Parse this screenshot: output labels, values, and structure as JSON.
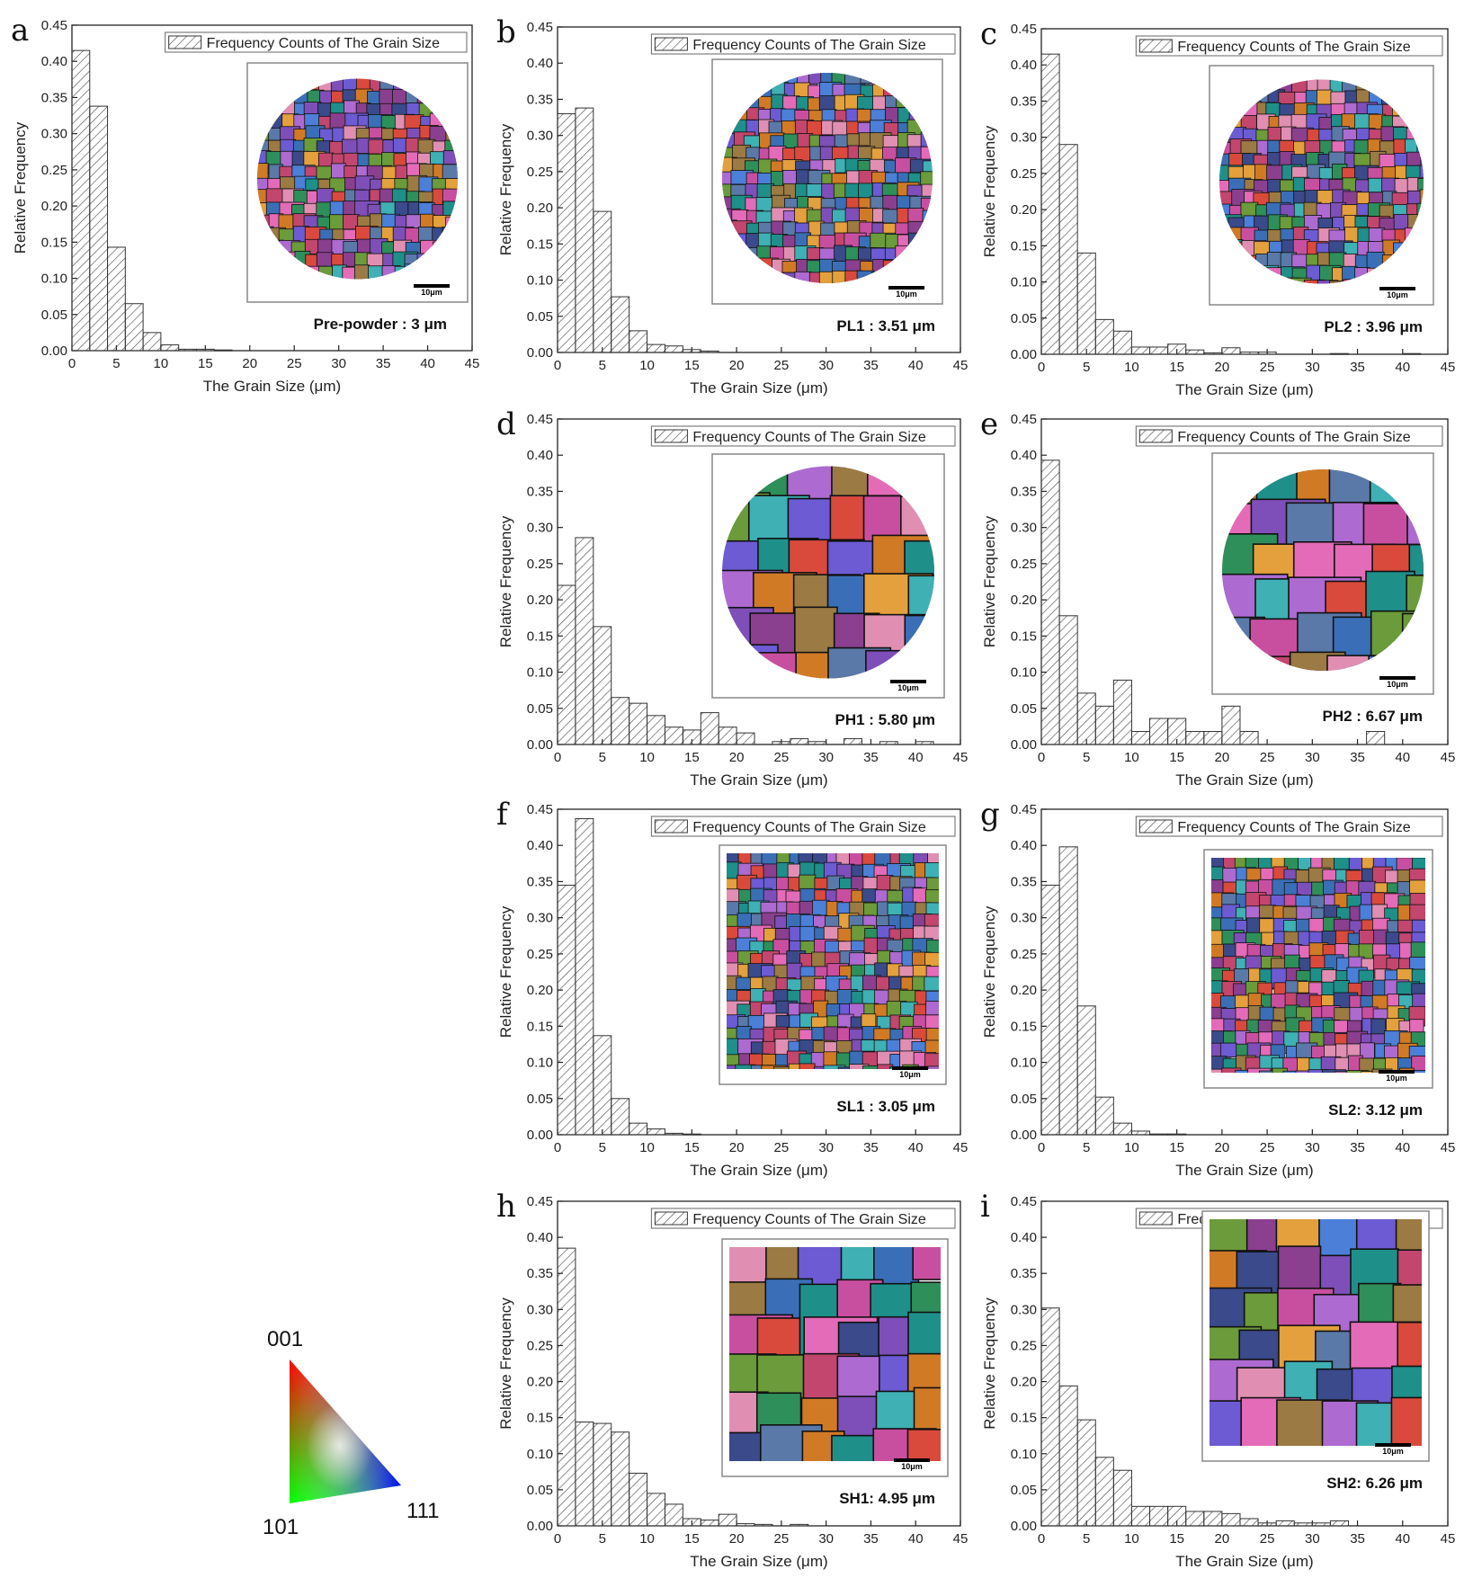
{
  "chart_data": [
    {
      "id": "a",
      "type": "bar",
      "letter": "a",
      "legend": "Frequency Counts of The Grain Size",
      "annotation": "Pre-powder : 3 μm",
      "xlabel": "The Grain Size (μm)",
      "ylabel": "Relative Frequency",
      "xlim": [
        0,
        45
      ],
      "ylim": [
        0,
        0.45
      ],
      "xticks": [
        "0",
        "5",
        "10",
        "15",
        "20",
        "25",
        "30",
        "35",
        "40",
        "45"
      ],
      "yticks": [
        "0.00",
        "0.05",
        "0.10",
        "0.15",
        "0.20",
        "0.25",
        "0.30",
        "0.35",
        "0.40",
        "0.45"
      ],
      "inset": "circle",
      "x": [
        1,
        3,
        5,
        7,
        9,
        11,
        13,
        15,
        17
      ],
      "values": [
        0.415,
        0.338,
        0.143,
        0.065,
        0.025,
        0.008,
        0.002,
        0.002,
        0.001
      ]
    },
    {
      "id": "b",
      "type": "bar",
      "letter": "b",
      "legend": "Frequency Counts of The Grain Size",
      "annotation": "PL1 : 3.51 μm",
      "xlabel": "The Grain Size (μm)",
      "ylabel": "Relative Frequency",
      "xlim": [
        0,
        45
      ],
      "ylim": [
        0,
        0.45
      ],
      "xticks": [
        "0",
        "5",
        "10",
        "15",
        "20",
        "25",
        "30",
        "35",
        "40",
        "45"
      ],
      "yticks": [
        "0.00",
        "0.05",
        "0.10",
        "0.15",
        "0.20",
        "0.25",
        "0.30",
        "0.35",
        "0.40",
        "0.45"
      ],
      "inset": "circle",
      "x": [
        1,
        3,
        5,
        7,
        9,
        11,
        13,
        15,
        17
      ],
      "values": [
        0.33,
        0.338,
        0.195,
        0.077,
        0.03,
        0.011,
        0.009,
        0.004,
        0.002
      ]
    },
    {
      "id": "c",
      "type": "bar",
      "letter": "c",
      "legend": "Frequency Counts of The Grain Size",
      "annotation": "PL2 : 3.96 μm",
      "xlabel": "The Grain Size (μm)",
      "ylabel": "Relative Frequency",
      "xlim": [
        0,
        45
      ],
      "ylim": [
        0,
        0.45
      ],
      "xticks": [
        "0",
        "5",
        "10",
        "15",
        "20",
        "25",
        "30",
        "35",
        "40",
        "45"
      ],
      "yticks": [
        "0.00",
        "0.05",
        "0.10",
        "0.15",
        "0.20",
        "0.25",
        "0.30",
        "0.35",
        "0.40",
        "0.45"
      ],
      "inset": "circle",
      "x": [
        1,
        3,
        5,
        7,
        9,
        11,
        13,
        15,
        17,
        19,
        21,
        23,
        25,
        33,
        41
      ],
      "values": [
        0.415,
        0.29,
        0.14,
        0.048,
        0.032,
        0.01,
        0.01,
        0.014,
        0.006,
        0.002,
        0.009,
        0.003,
        0.003,
        0.001,
        0.001
      ]
    },
    {
      "id": "d",
      "type": "bar",
      "letter": "d",
      "legend": "Frequency Counts of The Grain Size",
      "annotation": "PH1 : 5.80 μm",
      "xlabel": "The Grain Size (μm)",
      "ylabel": "Relative Frequency",
      "xlim": [
        0,
        45
      ],
      "ylim": [
        0,
        0.45
      ],
      "xticks": [
        "0",
        "5",
        "10",
        "15",
        "20",
        "25",
        "30",
        "35",
        "40",
        "45"
      ],
      "yticks": [
        "0.00",
        "0.05",
        "0.10",
        "0.15",
        "0.20",
        "0.25",
        "0.30",
        "0.35",
        "0.40",
        "0.45"
      ],
      "inset": "circle-coarse",
      "x": [
        1,
        3,
        5,
        7,
        9,
        11,
        13,
        15,
        17,
        19,
        21,
        25,
        27,
        29,
        33,
        37,
        41
      ],
      "values": [
        0.22,
        0.286,
        0.163,
        0.065,
        0.057,
        0.04,
        0.024,
        0.02,
        0.044,
        0.024,
        0.016,
        0.004,
        0.008,
        0.004,
        0.008,
        0.004,
        0.004
      ]
    },
    {
      "id": "e",
      "type": "bar",
      "letter": "e",
      "legend": "Frequency Counts of The Grain Size",
      "annotation": "PH2 : 6.67 μm",
      "xlabel": "The Grain Size (μm)",
      "ylabel": "Relative Frequency",
      "xlim": [
        0,
        45
      ],
      "ylim": [
        0,
        0.45
      ],
      "xticks": [
        "0",
        "5",
        "10",
        "15",
        "20",
        "25",
        "30",
        "35",
        "40",
        "45"
      ],
      "yticks": [
        "0.00",
        "0.05",
        "0.10",
        "0.15",
        "0.20",
        "0.25",
        "0.30",
        "0.35",
        "0.40",
        "0.45"
      ],
      "inset": "circle-coarse",
      "x": [
        1,
        3,
        5,
        7,
        9,
        11,
        13,
        15,
        17,
        19,
        21,
        23,
        37
      ],
      "values": [
        0.393,
        0.178,
        0.071,
        0.053,
        0.089,
        0.018,
        0.036,
        0.036,
        0.018,
        0.018,
        0.053,
        0.018,
        0.018
      ]
    },
    {
      "id": "f",
      "type": "bar",
      "letter": "f",
      "legend": "Frequency Counts of The Grain Size",
      "annotation": "SL1 : 3.05 μm",
      "xlabel": "The Grain Size (μm)",
      "ylabel": "Relative Frequency",
      "xlim": [
        0,
        45
      ],
      "ylim": [
        0,
        0.45
      ],
      "xticks": [
        "0",
        "5",
        "10",
        "15",
        "20",
        "25",
        "30",
        "35",
        "40",
        "45"
      ],
      "yticks": [
        "0.00",
        "0.05",
        "0.10",
        "0.15",
        "0.20",
        "0.25",
        "0.30",
        "0.35",
        "0.40",
        "0.45"
      ],
      "inset": "square",
      "x": [
        1,
        3,
        5,
        7,
        9,
        11,
        13,
        15
      ],
      "values": [
        0.345,
        0.437,
        0.137,
        0.05,
        0.016,
        0.008,
        0.002,
        0.001
      ]
    },
    {
      "id": "g",
      "type": "bar",
      "letter": "g",
      "legend": "Frequency Counts of The Grain Size",
      "annotation": "SL2: 3.12 μm",
      "xlabel": "The Grain Size (μm)",
      "ylabel": "Relative Frequency",
      "xlim": [
        0,
        45
      ],
      "ylim": [
        0,
        0.45
      ],
      "xticks": [
        "0",
        "5",
        "10",
        "15",
        "20",
        "25",
        "30",
        "35",
        "40",
        "45"
      ],
      "yticks": [
        "0.00",
        "0.05",
        "0.10",
        "0.15",
        "0.20",
        "0.25",
        "0.30",
        "0.35",
        "0.40",
        "0.45"
      ],
      "inset": "square",
      "x": [
        1,
        3,
        5,
        7,
        9,
        11,
        13,
        15
      ],
      "values": [
        0.345,
        0.398,
        0.178,
        0.052,
        0.016,
        0.005,
        0.001,
        0.001
      ]
    },
    {
      "id": "h",
      "type": "bar",
      "letter": "h",
      "legend": "Frequency Counts of The Grain Size",
      "annotation": "SH1: 4.95 μm",
      "xlabel": "The Grain Size (μm)",
      "ylabel": "Relative Frequency",
      "xlim": [
        0,
        45
      ],
      "ylim": [
        0,
        0.45
      ],
      "xticks": [
        "0",
        "5",
        "10",
        "15",
        "20",
        "25",
        "30",
        "35",
        "40",
        "45"
      ],
      "yticks": [
        "0.00",
        "0.05",
        "0.10",
        "0.15",
        "0.20",
        "0.25",
        "0.30",
        "0.35",
        "0.40",
        "0.45"
      ],
      "inset": "square-coarse",
      "x": [
        1,
        3,
        5,
        7,
        9,
        11,
        13,
        15,
        17,
        19,
        21,
        23,
        27
      ],
      "values": [
        0.385,
        0.144,
        0.142,
        0.13,
        0.073,
        0.045,
        0.03,
        0.01,
        0.008,
        0.016,
        0.003,
        0.002,
        0.002
      ]
    },
    {
      "id": "i",
      "type": "bar",
      "letter": "i",
      "legend": "Frequency Counts of The Grain Size",
      "annotation": "SH2: 6.26 μm",
      "xlabel": "The Grain Size (μm)",
      "ylabel": "Relative Frequency",
      "xlim": [
        0,
        45
      ],
      "ylim": [
        0,
        0.45
      ],
      "xticks": [
        "0",
        "5",
        "10",
        "15",
        "20",
        "25",
        "30",
        "35",
        "40",
        "45"
      ],
      "yticks": [
        "0.00",
        "0.05",
        "0.10",
        "0.15",
        "0.20",
        "0.25",
        "0.30",
        "0.35",
        "0.40",
        "0.45"
      ],
      "inset": "square-coarse",
      "x": [
        1,
        3,
        5,
        7,
        9,
        11,
        13,
        15,
        17,
        19,
        21,
        23,
        25,
        27,
        29,
        31,
        33
      ],
      "values": [
        0.302,
        0.194,
        0.147,
        0.095,
        0.077,
        0.027,
        0.027,
        0.027,
        0.02,
        0.02,
        0.017,
        0.01,
        0.004,
        0.007,
        0.004,
        0.004,
        0.007
      ]
    }
  ],
  "scale_bar_label": "10μm",
  "ipf_key": {
    "top": "001",
    "bottom_left": "101",
    "bottom_right": "111"
  }
}
